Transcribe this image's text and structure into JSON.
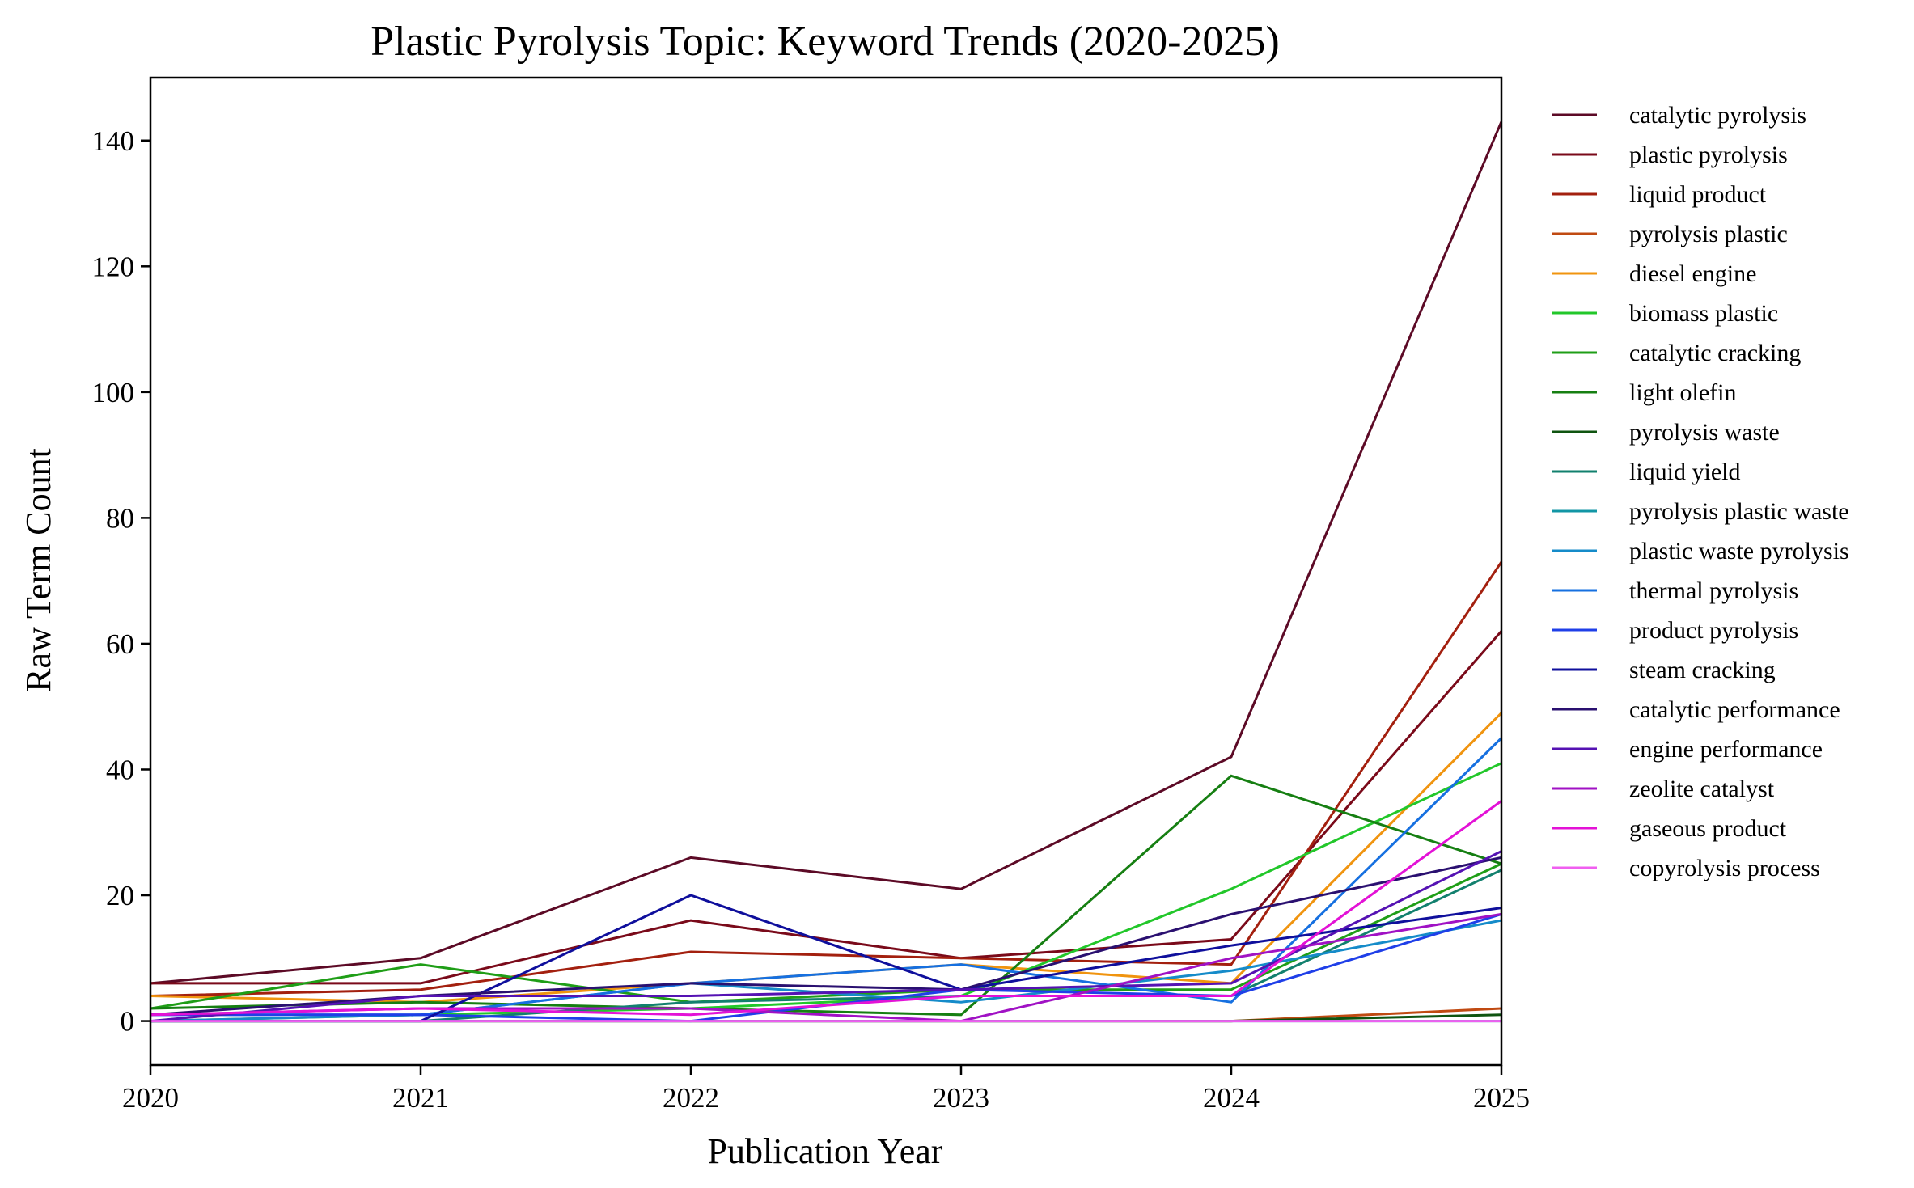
{
  "chart_data": {
    "type": "line",
    "title": "Plastic Pyrolysis Topic: Keyword Trends (2020-2025)",
    "xlabel": "Publication Year",
    "ylabel": "Raw Term Count",
    "x": [
      2020,
      2021,
      2022,
      2023,
      2024,
      2025
    ],
    "xlim": [
      2020,
      2025
    ],
    "ylim": [
      -7,
      150
    ],
    "yticks": [
      0,
      20,
      40,
      60,
      80,
      100,
      120,
      140
    ],
    "xticks": [
      2020,
      2021,
      2022,
      2023,
      2024,
      2025
    ],
    "grid": false,
    "legend_position": "outside-right",
    "series": [
      {
        "name": "catalytic pyrolysis",
        "color": "#5c0a26",
        "values": [
          6,
          10,
          26,
          21,
          42,
          143
        ]
      },
      {
        "name": "plastic pyrolysis",
        "color": "#7a0a1a",
        "values": [
          6,
          6,
          16,
          10,
          13,
          62
        ]
      },
      {
        "name": "liquid product",
        "color": "#a3200f",
        "values": [
          4,
          5,
          11,
          10,
          9,
          73
        ]
      },
      {
        "name": "pyrolysis plastic",
        "color": "#c04a12",
        "values": [
          0,
          0,
          0,
          0,
          0,
          2
        ]
      },
      {
        "name": "diesel engine",
        "color": "#f0940f",
        "values": [
          4,
          3,
          6,
          9,
          6,
          49
        ]
      },
      {
        "name": "biomass plastic",
        "color": "#22c72a",
        "values": [
          0,
          1,
          2,
          4,
          21,
          41
        ]
      },
      {
        "name": "catalytic cracking",
        "color": "#1f9e17",
        "values": [
          2,
          9,
          3,
          5,
          5,
          25
        ]
      },
      {
        "name": "light olefin",
        "color": "#167f12",
        "values": [
          2,
          3,
          2,
          1,
          39,
          25
        ]
      },
      {
        "name": "pyrolysis waste",
        "color": "#0f5410",
        "values": [
          0,
          0,
          0,
          0,
          0,
          1
        ]
      },
      {
        "name": "liquid yield",
        "color": "#12806e",
        "values": [
          0,
          0,
          3,
          4,
          4,
          24
        ]
      },
      {
        "name": "pyrolysis plastic waste",
        "color": "#1296a5",
        "values": [
          0,
          0,
          0,
          0,
          0,
          0
        ]
      },
      {
        "name": "plastic waste pyrolysis",
        "color": "#158bc9",
        "values": [
          0,
          1,
          6,
          3,
          8,
          16
        ]
      },
      {
        "name": "thermal pyrolysis",
        "color": "#1670e0",
        "values": [
          1,
          1,
          6,
          9,
          3,
          45
        ]
      },
      {
        "name": "product pyrolysis",
        "color": "#1f3fe8",
        "values": [
          1,
          1,
          0,
          5,
          4,
          17
        ]
      },
      {
        "name": "steam cracking",
        "color": "#0f0f9c",
        "values": [
          0,
          0,
          20,
          5,
          12,
          18
        ]
      },
      {
        "name": "catalytic performance",
        "color": "#2a1070",
        "values": [
          1,
          4,
          6,
          5,
          17,
          26
        ]
      },
      {
        "name": "engine performance",
        "color": "#5512b3",
        "values": [
          0,
          4,
          4,
          5,
          6,
          27
        ]
      },
      {
        "name": "zeolite catalyst",
        "color": "#a012c4",
        "values": [
          1,
          2,
          2,
          0,
          10,
          17
        ]
      },
      {
        "name": "gaseous product",
        "color": "#e312d6",
        "values": [
          1,
          2,
          1,
          4,
          4,
          35
        ]
      },
      {
        "name": "copyrolysis process",
        "color": "#f05ff0",
        "values": [
          0,
          0,
          0,
          0,
          0,
          0
        ]
      }
    ]
  }
}
